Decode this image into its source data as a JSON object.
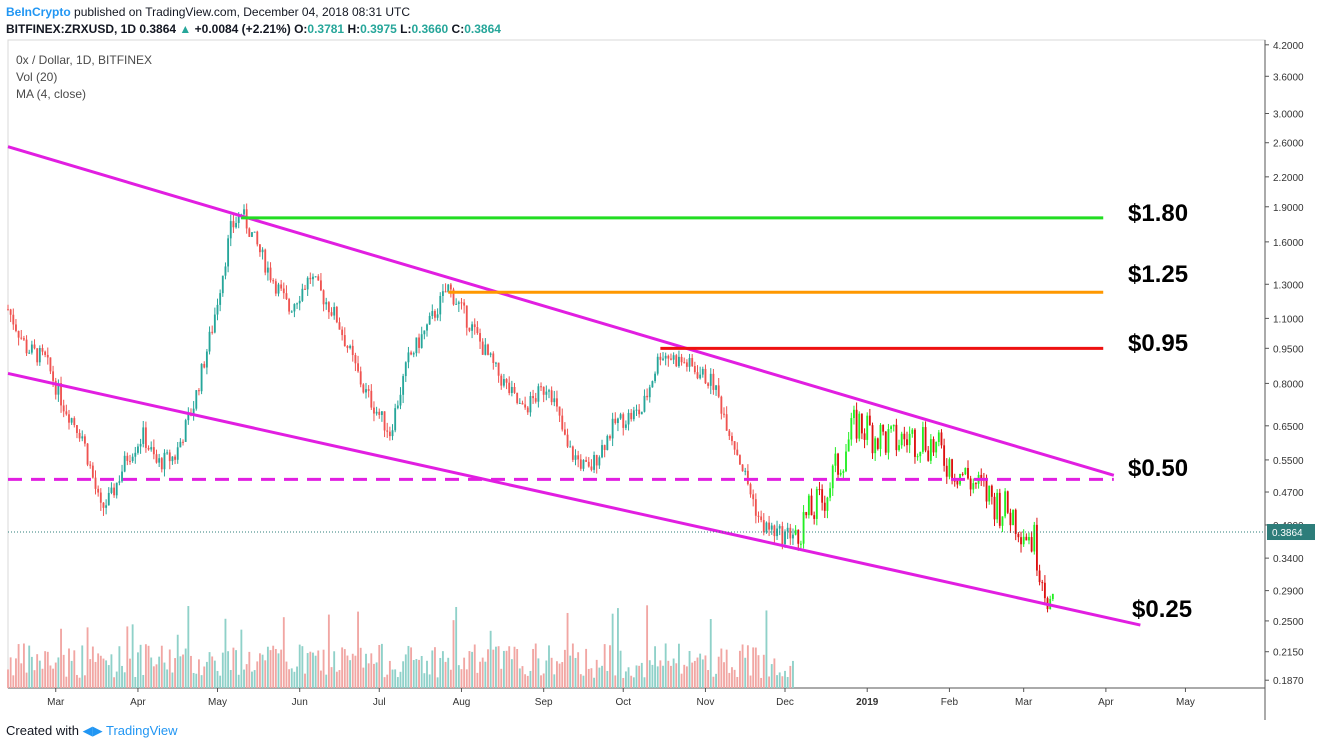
{
  "header": {
    "brand": "BeInCrypto",
    "published": "published on TradingView.com, December 04, 2018 08:31 UTC",
    "symbol": "BITFINEX:ZRXUSD, 1D",
    "last": "0.3864",
    "change": "+0.0084 (+2.21%)",
    "o_label": "O:",
    "o": "0.3781",
    "h_label": "H:",
    "h": "0.3975",
    "l_label": "L:",
    "l": "0.3660",
    "c_label": "C:",
    "c": "0.3864"
  },
  "legend": {
    "title": "0x / Dollar, 1D, BITFINEX",
    "vol": "Vol (20)",
    "ma": "MA (4, close)"
  },
  "footer": {
    "created_with": "Created with",
    "brand": "TradingView"
  },
  "colors": {
    "up": "#26a69a",
    "down": "#ef5350",
    "channel": "#e11ee1",
    "green_level": "#22dd22",
    "orange_level": "#ff9800",
    "red_level": "#ee1111",
    "last_price_bg": "#2d7d7a"
  },
  "chart_data": {
    "type": "candlestick",
    "scale": "log",
    "x_start": "2018-02-11",
    "x_end": "2019-05-31",
    "ylim": [
      0.18,
      4.3
    ],
    "x_tick_labels": [
      {
        "label": "Mar",
        "date": "2018-03-01"
      },
      {
        "label": "Apr",
        "date": "2018-04-01"
      },
      {
        "label": "May",
        "date": "2018-05-01"
      },
      {
        "label": "Jun",
        "date": "2018-06-01"
      },
      {
        "label": "Jul",
        "date": "2018-07-01"
      },
      {
        "label": "Aug",
        "date": "2018-08-01"
      },
      {
        "label": "Sep",
        "date": "2018-09-01"
      },
      {
        "label": "Oct",
        "date": "2018-10-01"
      },
      {
        "label": "Nov",
        "date": "2018-11-01"
      },
      {
        "label": "Dec",
        "date": "2018-12-01"
      },
      {
        "label": "2019",
        "date": "2019-01-01"
      },
      {
        "label": "Feb",
        "date": "2019-02-01"
      },
      {
        "label": "Mar",
        "date": "2019-03-01"
      },
      {
        "label": "Apr",
        "date": "2019-04-01"
      },
      {
        "label": "May",
        "date": "2019-05-01"
      }
    ],
    "y_tick_labels": [
      "4.2000",
      "3.6000",
      "3.0000",
      "2.6000",
      "2.2000",
      "1.9000",
      "1.6000",
      "1.3000",
      "1.1000",
      "0.9500",
      "0.8000",
      "0.6500",
      "0.5500",
      "0.4700",
      "0.4000",
      "0.3400",
      "0.2900",
      "0.2500",
      "0.2150",
      "0.1870"
    ],
    "last_price": "0.3864",
    "price_path": [
      [
        "2018-02-11",
        1.15
      ],
      [
        "2018-02-18",
        0.95
      ],
      [
        "2018-02-25",
        0.9
      ],
      [
        "2018-03-04",
        0.72
      ],
      [
        "2018-03-11",
        0.62
      ],
      [
        "2018-03-18",
        0.43
      ],
      [
        "2018-03-22",
        0.46
      ],
      [
        "2018-03-28",
        0.56
      ],
      [
        "2018-04-03",
        0.62
      ],
      [
        "2018-04-08",
        0.54
      ],
      [
        "2018-04-15",
        0.56
      ],
      [
        "2018-04-22",
        0.72
      ],
      [
        "2018-04-29",
        1.05
      ],
      [
        "2018-05-06",
        1.7
      ],
      [
        "2018-05-10",
        1.85
      ],
      [
        "2018-05-20",
        1.4
      ],
      [
        "2018-05-28",
        1.15
      ],
      [
        "2018-06-05",
        1.35
      ],
      [
        "2018-06-15",
        1.1
      ],
      [
        "2018-06-25",
        0.78
      ],
      [
        "2018-07-05",
        0.63
      ],
      [
        "2018-07-12",
        0.9
      ],
      [
        "2018-07-19",
        1.05
      ],
      [
        "2018-07-27",
        1.28
      ],
      [
        "2018-08-05",
        1.05
      ],
      [
        "2018-08-14",
        0.85
      ],
      [
        "2018-08-24",
        0.7
      ],
      [
        "2018-09-03",
        0.8
      ],
      [
        "2018-09-10",
        0.58
      ],
      [
        "2018-09-18",
        0.52
      ],
      [
        "2018-09-28",
        0.66
      ],
      [
        "2018-10-08",
        0.7
      ],
      [
        "2018-10-15",
        0.93
      ],
      [
        "2018-10-25",
        0.88
      ],
      [
        "2018-11-04",
        0.8
      ],
      [
        "2018-11-14",
        0.55
      ],
      [
        "2018-11-22",
        0.4
      ],
      [
        "2018-11-30",
        0.38
      ],
      [
        "2018-12-04",
        0.3864
      ],
      [
        "2018-12-15",
        0.45
      ],
      [
        "2018-12-28",
        0.66
      ],
      [
        "2019-01-10",
        0.6
      ],
      [
        "2019-01-22",
        0.62
      ],
      [
        "2019-02-03",
        0.53
      ],
      [
        "2019-02-14",
        0.47
      ],
      [
        "2019-02-25",
        0.42
      ],
      [
        "2019-03-05",
        0.37
      ],
      [
        "2019-03-09",
        0.3
      ],
      [
        "2019-03-12",
        0.26
      ]
    ],
    "levels": [
      {
        "label": "$1.80",
        "price": 1.8,
        "color": "#22dd22",
        "from": "2018-05-10",
        "to": "2019-03-31"
      },
      {
        "label": "$1.25",
        "price": 1.25,
        "color": "#ff9800",
        "from": "2018-07-27",
        "to": "2019-03-31"
      },
      {
        "label": "$0.95",
        "price": 0.95,
        "color": "#ee1111",
        "from": "2018-10-15",
        "to": "2019-03-31"
      },
      {
        "label": "$0.50",
        "price": 0.5,
        "color": "#e11ee1",
        "from": "2018-02-11",
        "to": "2019-04-04",
        "dashed": true
      },
      {
        "label": "$0.25",
        "price": null
      }
    ],
    "channel_lines": [
      {
        "from": [
          "2018-02-11",
          2.55
        ],
        "to": [
          "2019-04-04",
          0.51
        ]
      },
      {
        "from": [
          "2018-02-11",
          0.84
        ],
        "to": [
          "2019-04-14",
          0.245
        ]
      }
    ],
    "volume_indicator": "Vol (20)",
    "ma_indicator": "MA (4, close)"
  }
}
